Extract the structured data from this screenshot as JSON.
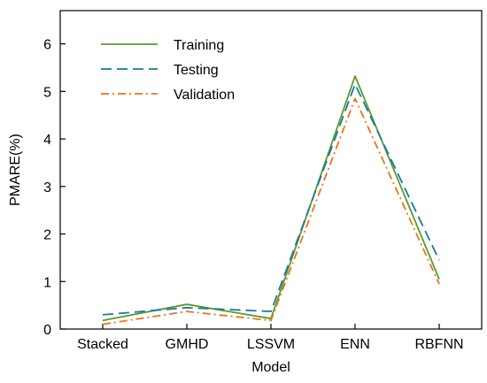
{
  "chart_data": {
    "type": "line",
    "categories": [
      "Stacked",
      "GMHD",
      "LSSVM",
      "ENN",
      "RBFNN"
    ],
    "series": [
      {
        "name": "Training",
        "values": [
          0.18,
          0.52,
          0.22,
          5.32,
          1.05
        ],
        "color": "#5a9b2a",
        "dash": "solid"
      },
      {
        "name": "Testing",
        "values": [
          0.3,
          0.45,
          0.37,
          5.15,
          1.45
        ],
        "color": "#1a7a9c",
        "dash": "dashed"
      },
      {
        "name": "Validation",
        "values": [
          0.1,
          0.37,
          0.18,
          4.85,
          0.95
        ],
        "color": "#e8731c",
        "dash": "dashdot"
      }
    ],
    "xlabel": "Model",
    "ylabel": "PMARE(%)",
    "ylim": [
      0,
      6.7
    ],
    "yticks": [
      0,
      1,
      2,
      3,
      4,
      5,
      6
    ],
    "grid": false,
    "legend_position": "top-left"
  }
}
